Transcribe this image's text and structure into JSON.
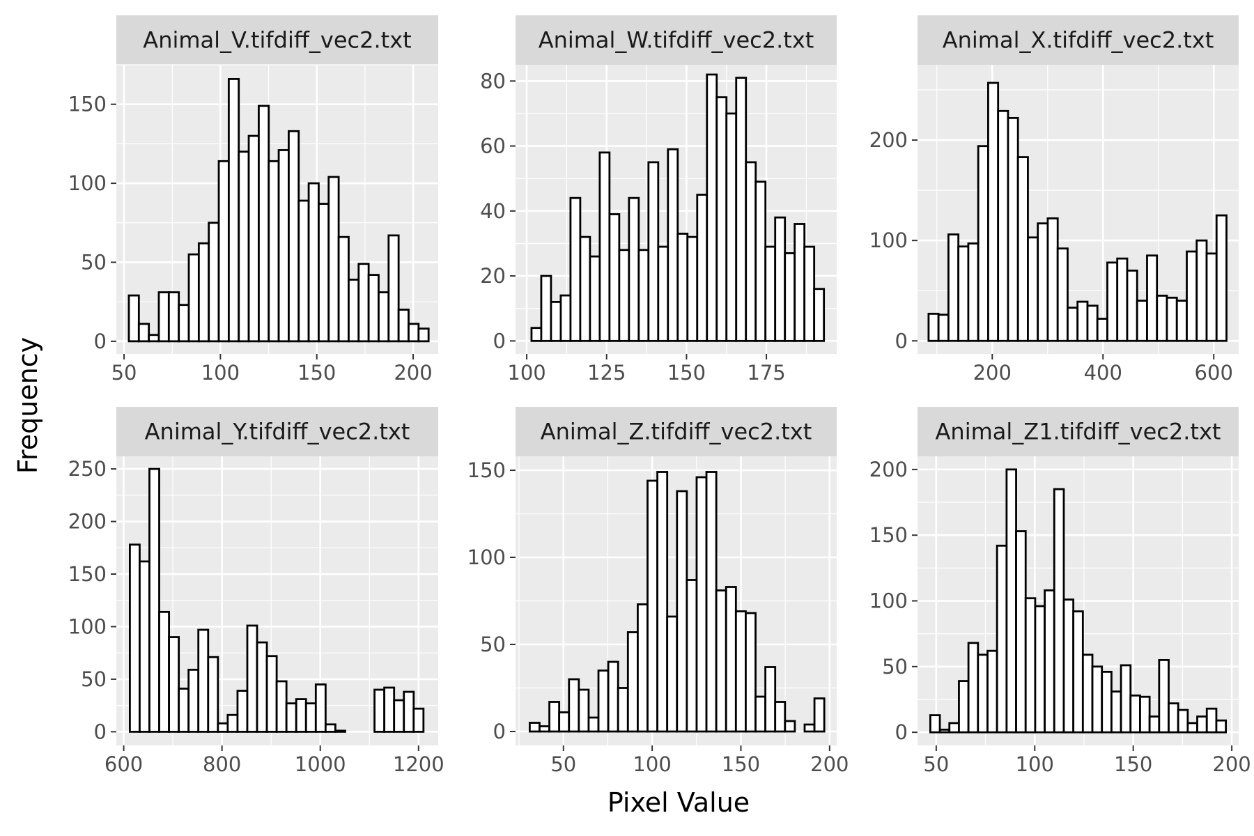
{
  "chart_data": {
    "type": "histogram",
    "facet_layout": "2 rows x 3 columns",
    "xlabel": "Pixel Value",
    "ylabel": "Frequency",
    "bar_fill": "#ffffff",
    "bar_stroke": "#000000",
    "panel_background": "#ebebeb",
    "strip_background": "#d9d9d9",
    "grid": "on",
    "grid_color": "#ffffff",
    "panels": [
      {
        "title": "Animal_V.tifdiff_vec2.txt",
        "x_range": [
          52.5,
          208
        ],
        "xlim": [
          46,
          213
        ],
        "ylim": [
          -8,
          175
        ],
        "x_ticks": [
          50,
          100,
          150,
          200
        ],
        "y_ticks": [
          0,
          50,
          100,
          150
        ],
        "counts": [
          29,
          11,
          4,
          31,
          31,
          23,
          55,
          62,
          75,
          114,
          166,
          120,
          130,
          149,
          114,
          121,
          133,
          89,
          100,
          87,
          104,
          66,
          39,
          49,
          42,
          31,
          67,
          20,
          11,
          8
        ]
      },
      {
        "title": "Animal_W.tifdiff_vec2.txt",
        "x_range": [
          101.5,
          193
        ],
        "xlim": [
          96.5,
          197
        ],
        "ylim": [
          -4,
          85
        ],
        "x_ticks": [
          100,
          125,
          150,
          175
        ],
        "y_ticks": [
          0,
          20,
          40,
          60,
          80
        ],
        "counts": [
          4,
          20,
          12,
          14,
          44,
          32,
          26,
          58,
          39,
          28,
          44,
          28,
          55,
          29,
          59,
          33,
          32,
          45,
          82,
          75,
          70,
          81,
          55,
          49,
          29,
          38,
          27,
          36,
          29,
          16
        ]
      },
      {
        "title": "Animal_X.tifdiff_vec2.txt",
        "x_range": [
          85,
          623
        ],
        "xlim": [
          65,
          645
        ],
        "ylim": [
          -13,
          275
        ],
        "x_ticks": [
          200,
          400,
          600
        ],
        "y_ticks": [
          0,
          100,
          200
        ],
        "counts": [
          27,
          26,
          106,
          94,
          97,
          194,
          257,
          229,
          222,
          183,
          103,
          117,
          122,
          92,
          33,
          39,
          35,
          22,
          78,
          82,
          70,
          40,
          85,
          45,
          43,
          40,
          89,
          100,
          87,
          125
        ]
      },
      {
        "title": "Animal_Y.tifdiff_vec2.txt",
        "x_range": [
          612.5,
          1210
        ],
        "xlim": [
          585,
          1240
        ],
        "ylim": [
          -13,
          262
        ],
        "x_ticks": [
          600,
          800,
          1000,
          1200
        ],
        "y_ticks": [
          0,
          50,
          100,
          150,
          200,
          250
        ],
        "counts": [
          178,
          162,
          250,
          114,
          90,
          41,
          59,
          97,
          71,
          8,
          16,
          39,
          101,
          85,
          72,
          48,
          27,
          31,
          27,
          45,
          7,
          1,
          0,
          0,
          0,
          40,
          42,
          30,
          38,
          22
        ]
      },
      {
        "title": "Animal_Z.tifdiff_vec2.txt",
        "x_range": [
          31,
          197
        ],
        "xlim": [
          23,
          204
        ],
        "ylim": [
          -8,
          158
        ],
        "x_ticks": [
          50,
          100,
          150,
          200
        ],
        "y_ticks": [
          0,
          50,
          100,
          150
        ],
        "counts": [
          5,
          3,
          17,
          11,
          30,
          24,
          8,
          35,
          40,
          25,
          57,
          73,
          144,
          149,
          66,
          138,
          87,
          146,
          149,
          81,
          83,
          69,
          68,
          20,
          37,
          17,
          6,
          0,
          4,
          19
        ]
      },
      {
        "title": "Animal_Z1.tifdiff_vec2.txt",
        "x_range": [
          47,
          197
        ],
        "xlim": [
          40.5,
          203.5
        ],
        "ylim": [
          -10,
          210
        ],
        "x_ticks": [
          50,
          100,
          150,
          200
        ],
        "y_ticks": [
          0,
          50,
          100,
          150,
          200
        ],
        "counts": [
          13,
          2,
          7,
          39,
          68,
          59,
          62,
          142,
          200,
          153,
          102,
          96,
          108,
          185,
          101,
          92,
          59,
          50,
          46,
          31,
          51,
          28,
          27,
          12,
          55,
          22,
          17,
          7,
          12,
          18,
          9
        ]
      }
    ]
  }
}
